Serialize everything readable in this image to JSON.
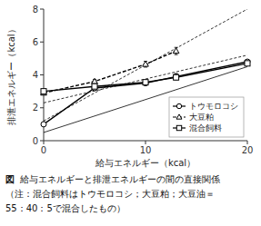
{
  "chart_data": {
    "type": "line",
    "xlabel": "給与エネルギー（kcal）",
    "ylabel": "排泄エネルギー（kcal）",
    "xlim": [
      0,
      20
    ],
    "ylim": [
      0,
      8
    ],
    "xticks": [
      0,
      10,
      20
    ],
    "yticks": [
      0,
      2,
      4,
      6,
      8
    ],
    "grid": false,
    "legend": "lower right",
    "series": [
      {
        "name": "トウモロコシ",
        "color": "black",
        "marker": "circle",
        "line_style": "solid",
        "x": [
          0,
          5,
          10,
          13,
          20
        ],
        "values": [
          1.0,
          3.2,
          3.5,
          3.9,
          4.8
        ],
        "errors": [
          0.08,
          0.08,
          0.12,
          0.18,
          0.12
        ]
      },
      {
        "name": "大豆粕",
        "color": "black",
        "marker": "triangle",
        "line_style": "dashed",
        "x": [
          0,
          5,
          10,
          13
        ],
        "values": [
          2.9,
          3.6,
          4.65,
          5.45
        ],
        "errors": [
          0.1,
          0.12,
          0.18,
          0.22
        ]
      },
      {
        "name": "混合飼料",
        "color": "black",
        "marker": "square",
        "line_style": "solid",
        "x": [
          0,
          5,
          10,
          13,
          20
        ],
        "values": [
          3.0,
          3.3,
          3.55,
          3.85,
          4.7
        ],
        "errors": [
          0.08,
          0.08,
          0.1,
          0.14,
          0.1
        ]
      },
      {
        "color": "black",
        "line_style": "solid",
        "x": [
          0,
          20
        ],
        "values": [
          0.5,
          4.5
        ]
      },
      {
        "color": "black",
        "line_style": "dashed",
        "x": [
          0,
          20
        ],
        "values": [
          1.2,
          8.0
        ]
      },
      {
        "color": "black",
        "line_style": "dashed",
        "x": [
          0,
          20
        ],
        "values": [
          2.3,
          5.2
        ]
      }
    ],
    "annotations": [
      "図",
      "給与エネルギーと排泄エネルギーの間の直接関係",
      "（注：混合飼料はトウモロコシ；大豆粕；大豆油＝",
      "55：40：5で混合したもの）"
    ]
  }
}
